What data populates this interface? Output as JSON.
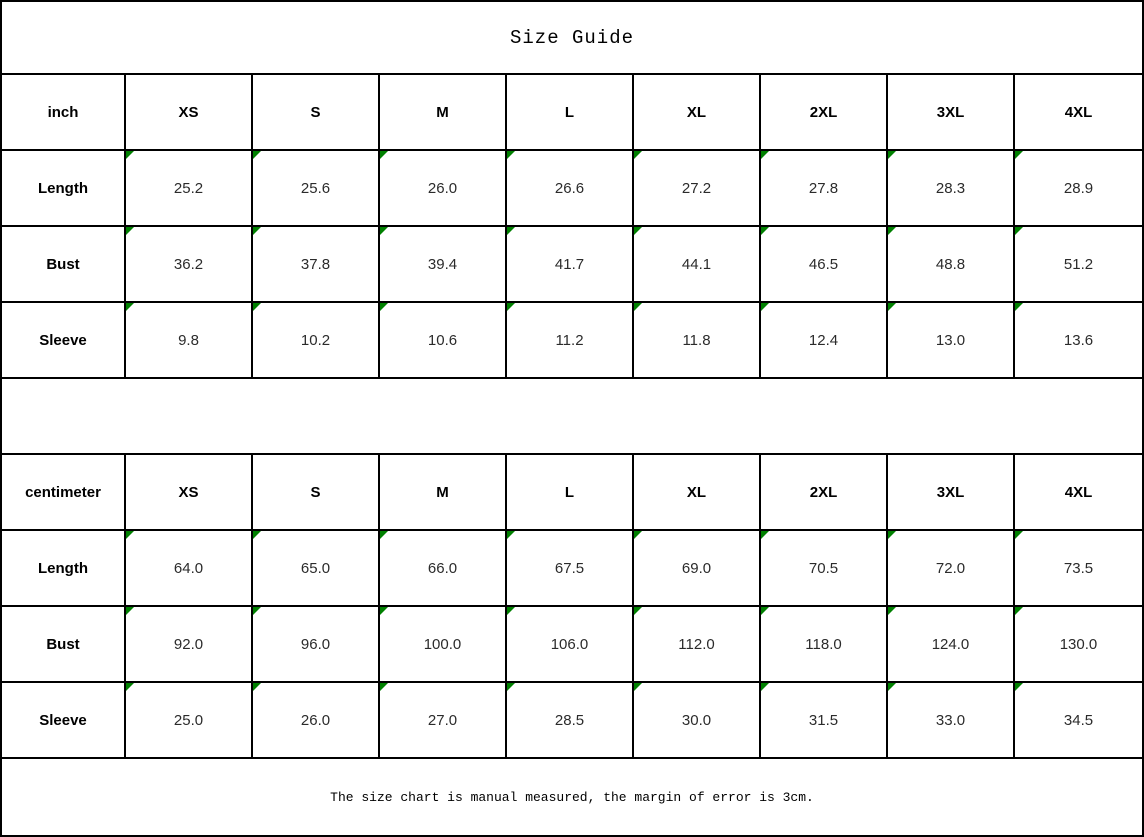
{
  "page": {
    "title": "Size Guide",
    "footnote": "The size chart is manual measured, the margin of error is 3cm."
  },
  "colors": {
    "background": "#ffffff",
    "border": "#000000",
    "text": "#000000",
    "value_text": "#2b2b2b",
    "marker_green": "#008000"
  },
  "size_labels": [
    "XS",
    "S",
    "M",
    "L",
    "XL",
    "2XL",
    "3XL",
    "4XL"
  ],
  "tables": [
    {
      "unit_label": "inch",
      "rows": [
        {
          "label": "Length",
          "values": [
            "25.2",
            "25.6",
            "26.0",
            "26.6",
            "27.2",
            "27.8",
            "28.3",
            "28.9"
          ]
        },
        {
          "label": "Bust",
          "values": [
            "36.2",
            "37.8",
            "39.4",
            "41.7",
            "44.1",
            "46.5",
            "48.8",
            "51.2"
          ]
        },
        {
          "label": "Sleeve",
          "values": [
            "9.8",
            "10.2",
            "10.6",
            "11.2",
            "11.8",
            "12.4",
            "13.0",
            "13.6"
          ]
        }
      ]
    },
    {
      "unit_label": "centimeter",
      "rows": [
        {
          "label": "Length",
          "values": [
            "64.0",
            "65.0",
            "66.0",
            "67.5",
            "69.0",
            "70.5",
            "72.0",
            "73.5"
          ]
        },
        {
          "label": "Bust",
          "values": [
            "92.0",
            "96.0",
            "100.0",
            "106.0",
            "112.0",
            "118.0",
            "124.0",
            "130.0"
          ]
        },
        {
          "label": "Sleeve",
          "values": [
            "25.0",
            "26.0",
            "27.0",
            "28.5",
            "30.0",
            "31.5",
            "33.0",
            "34.5"
          ]
        }
      ]
    }
  ],
  "chart_data": {
    "type": "table",
    "title": "Size Guide",
    "note": "The size chart is manual measured, the margin of error is 3cm.",
    "columns": [
      "XS",
      "S",
      "M",
      "L",
      "XL",
      "2XL",
      "3XL",
      "4XL"
    ],
    "tables": [
      {
        "unit": "inch",
        "rows": [
          {
            "label": "Length",
            "values": [
              25.2,
              25.6,
              26.0,
              26.6,
              27.2,
              27.8,
              28.3,
              28.9
            ]
          },
          {
            "label": "Bust",
            "values": [
              36.2,
              37.8,
              39.4,
              41.7,
              44.1,
              46.5,
              48.8,
              51.2
            ]
          },
          {
            "label": "Sleeve",
            "values": [
              9.8,
              10.2,
              10.6,
              11.2,
              11.8,
              12.4,
              13.0,
              13.6
            ]
          }
        ]
      },
      {
        "unit": "centimeter",
        "rows": [
          {
            "label": "Length",
            "values": [
              64.0,
              65.0,
              66.0,
              67.5,
              69.0,
              70.5,
              72.0,
              73.5
            ]
          },
          {
            "label": "Bust",
            "values": [
              92.0,
              96.0,
              100.0,
              106.0,
              112.0,
              118.0,
              124.0,
              130.0
            ]
          },
          {
            "label": "Sleeve",
            "values": [
              25.0,
              26.0,
              27.0,
              28.5,
              30.0,
              31.5,
              33.0,
              34.5
            ]
          }
        ]
      }
    ]
  }
}
